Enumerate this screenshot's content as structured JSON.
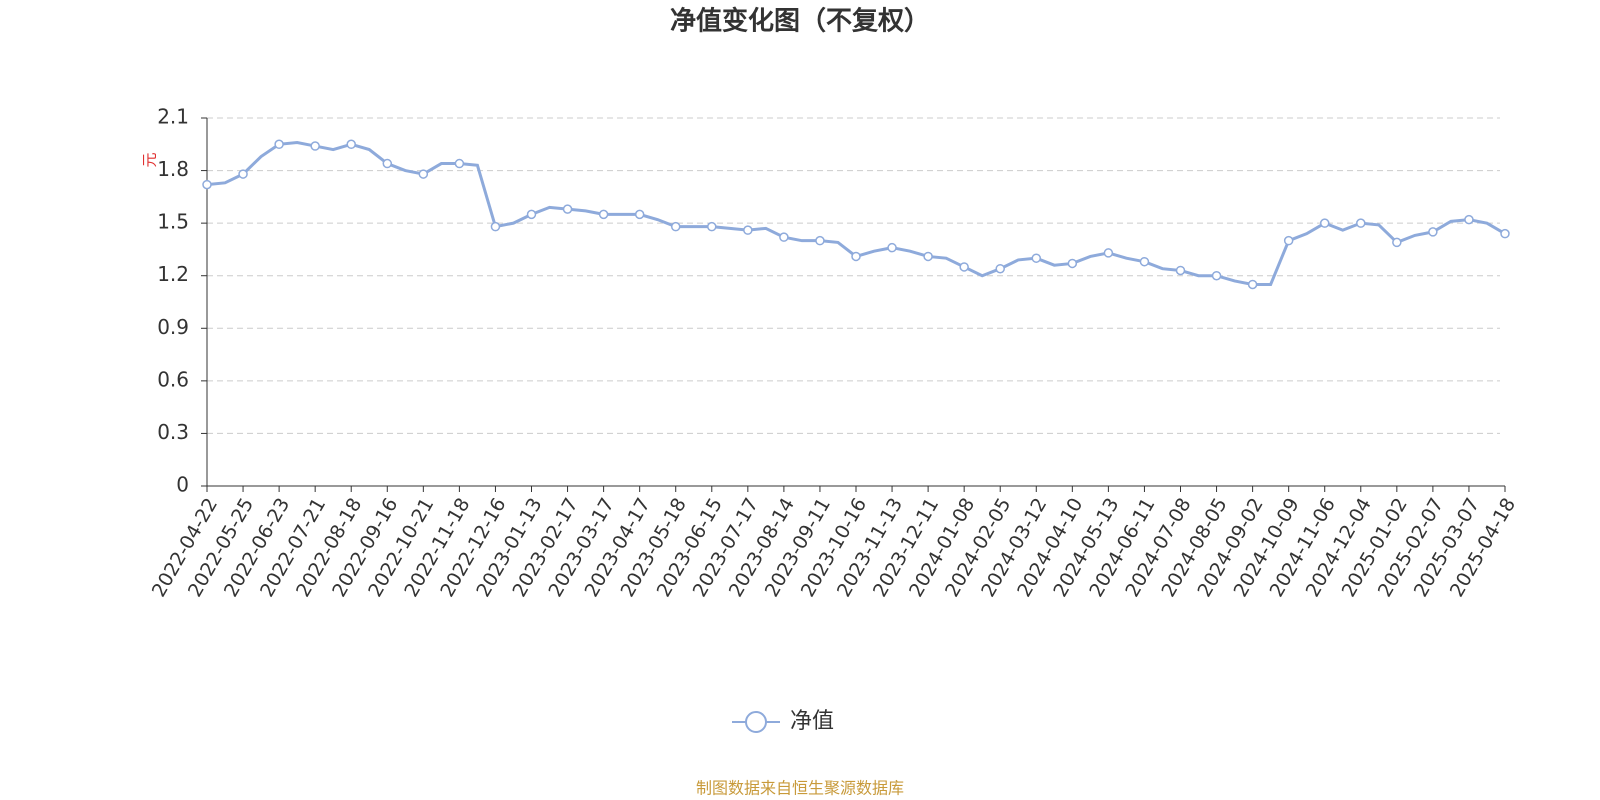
{
  "chart_data": {
    "type": "line",
    "title": "净值变化图（不复权）",
    "y_axis_label": "元",
    "source": "制图数据来自恒生聚源数据库",
    "categories": [
      "2022-04-22",
      null,
      "2022-05-25",
      null,
      "2022-06-23",
      null,
      "2022-07-21",
      null,
      "2022-08-18",
      null,
      "2022-09-16",
      null,
      "2022-10-21",
      null,
      "2022-11-18",
      null,
      "2022-12-16",
      null,
      "2023-01-13",
      null,
      "2023-02-17",
      null,
      "2023-03-17",
      null,
      "2023-04-17",
      null,
      "2023-05-18",
      null,
      "2023-06-15",
      null,
      "2023-07-17",
      null,
      "2023-08-14",
      null,
      "2023-09-11",
      null,
      "2023-10-16",
      null,
      "2023-11-13",
      null,
      "2023-12-11",
      null,
      "2024-01-08",
      null,
      "2024-02-05",
      null,
      "2024-03-12",
      null,
      "2024-04-10",
      null,
      "2024-05-13",
      null,
      "2024-06-11",
      null,
      "2024-07-08",
      null,
      "2024-08-05",
      null,
      "2024-09-02",
      null,
      "2024-10-09",
      null,
      "2024-11-06",
      null,
      "2024-12-04",
      null,
      "2025-01-02",
      null,
      "2025-02-07",
      null,
      "2025-03-07",
      null,
      "2025-04-18"
    ],
    "series": [
      {
        "name": "净值",
        "color": "#8eaadb",
        "values": [
          1.72,
          1.73,
          1.78,
          1.88,
          1.95,
          1.96,
          1.94,
          1.92,
          1.95,
          1.92,
          1.84,
          1.8,
          1.78,
          1.84,
          1.84,
          1.83,
          1.48,
          1.5,
          1.55,
          1.59,
          1.58,
          1.57,
          1.55,
          1.55,
          1.55,
          1.52,
          1.48,
          1.48,
          1.48,
          1.47,
          1.46,
          1.47,
          1.42,
          1.4,
          1.4,
          1.39,
          1.31,
          1.34,
          1.36,
          1.34,
          1.31,
          1.3,
          1.25,
          1.2,
          1.24,
          1.29,
          1.3,
          1.26,
          1.27,
          1.31,
          1.33,
          1.3,
          1.28,
          1.24,
          1.23,
          1.2,
          1.2,
          1.17,
          1.15,
          1.15,
          1.4,
          1.44,
          1.5,
          1.46,
          1.5,
          1.49,
          1.39,
          1.43,
          1.45,
          1.51,
          1.52,
          1.5,
          1.44
        ]
      }
    ],
    "ylim": [
      0,
      2.1
    ],
    "yticks": [
      0,
      0.3,
      0.6,
      0.9,
      1.2,
      1.5,
      1.8,
      2.1
    ],
    "grid": true,
    "legend": "bottom"
  }
}
